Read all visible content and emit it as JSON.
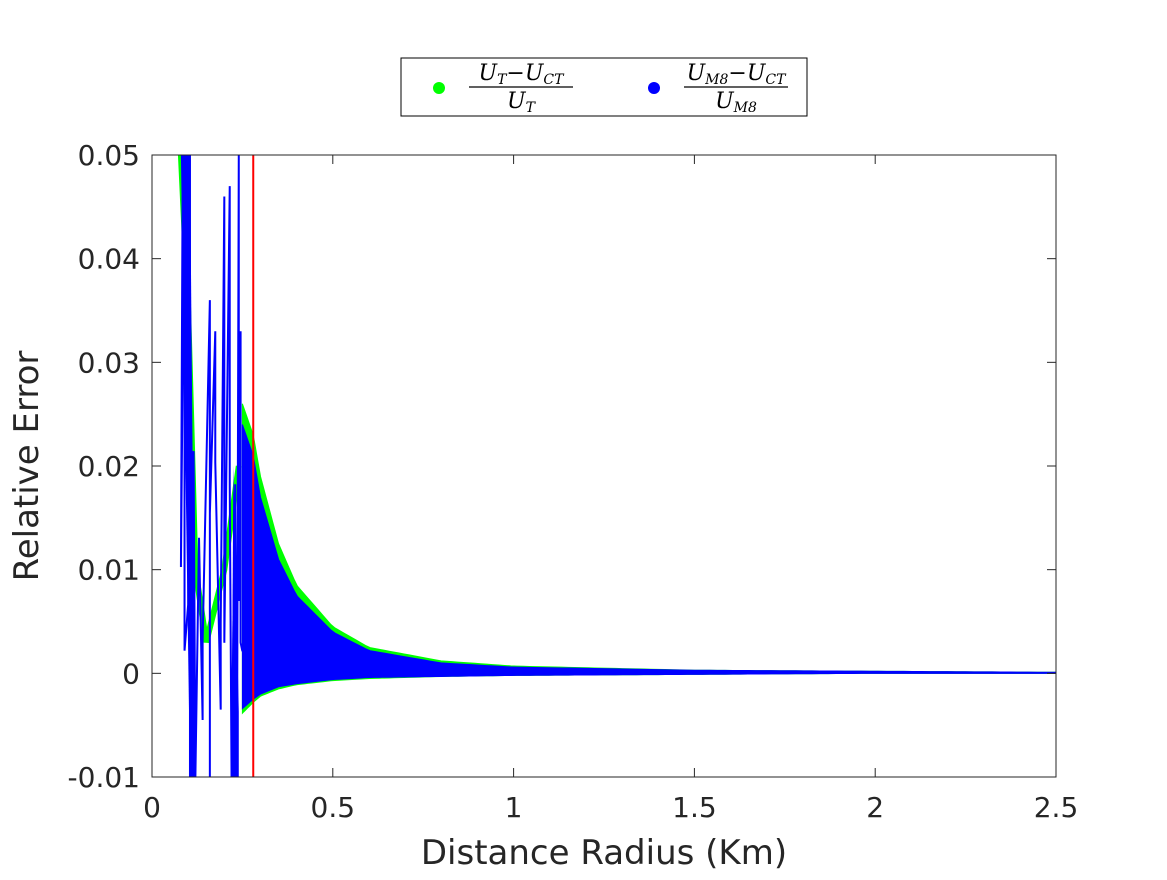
{
  "chart_data": {
    "type": "line",
    "title": "",
    "xlabel": "Distance Radius (Km)",
    "ylabel": "Relative Error",
    "xlim": [
      0,
      2.5
    ],
    "ylim": [
      -0.01,
      0.05
    ],
    "xticks": [
      0,
      0.5,
      1,
      1.5,
      2,
      2.5
    ],
    "xtick_labels": [
      "0",
      "0.5",
      "1",
      "1.5",
      "2",
      "2.5"
    ],
    "yticks": [
      -0.01,
      0,
      0.01,
      0.02,
      0.03,
      0.04,
      0.05
    ],
    "ytick_labels": [
      "-0.01",
      "0",
      "0.01",
      "0.02",
      "0.03",
      "0.04",
      "0.05"
    ],
    "grid": false,
    "legend_placement": "top-center outside",
    "series": [
      {
        "name": "(U_T − U_CT) / U_T",
        "color": "#00ff00",
        "upper_envelope": {
          "x": [
            0.25,
            0.28,
            0.3,
            0.35,
            0.4,
            0.5,
            0.6,
            0.8,
            1.0,
            1.5,
            2.0,
            2.5
          ],
          "y": [
            0.026,
            0.023,
            0.019,
            0.0125,
            0.0085,
            0.0045,
            0.0025,
            0.0012,
            0.0007,
            0.0003,
            0.0002,
            0.0001
          ]
        },
        "lower_envelope": {
          "x": [
            0.24,
            0.28,
            0.3,
            0.35,
            0.4,
            0.5,
            0.6,
            0.8,
            1.0,
            1.5,
            2.0,
            2.5
          ],
          "y": [
            -0.0042,
            -0.0028,
            -0.0022,
            -0.0015,
            -0.0011,
            -0.0007,
            -0.0005,
            -0.0003,
            -0.0002,
            -0.0001,
            0,
            0
          ]
        },
        "near_field": {
          "x": [
            0.08,
            0.1,
            0.12,
            0.15,
            0.2,
            0.24
          ],
          "y": [
            0.05,
            0.035,
            0.01,
            0.003,
            0.01,
            0.02
          ]
        }
      },
      {
        "name": "(U_M8 − U_CT) / U_M8",
        "color": "#0000ff",
        "upper_envelope": {
          "x": [
            0.25,
            0.28,
            0.3,
            0.35,
            0.4,
            0.5,
            0.6,
            0.8,
            1.0,
            1.5,
            2.0,
            2.5
          ],
          "y": [
            0.024,
            0.021,
            0.017,
            0.011,
            0.0075,
            0.004,
            0.0022,
            0.001,
            0.0006,
            0.0003,
            0.0002,
            0.0001
          ]
        },
        "lower_envelope": {
          "x": [
            0.24,
            0.28,
            0.3,
            0.35,
            0.4,
            0.5,
            0.6,
            0.8,
            1.0,
            1.5,
            2.0,
            2.5
          ],
          "y": [
            -0.0037,
            -0.0025,
            -0.002,
            -0.0013,
            -0.001,
            -0.0006,
            -0.0004,
            -0.0003,
            -0.0002,
            -0.0001,
            0,
            0
          ]
        },
        "spikes": {
          "x": [
            0.09,
            0.105,
            0.16,
            0.175,
            0.2,
            0.215,
            0.24,
            0.245
          ],
          "y": [
            0.05,
            0.05,
            0.036,
            0.033,
            0.046,
            0.047,
            0.05,
            0.033
          ]
        },
        "dips": {
          "x": [
            0.105,
            0.12,
            0.14,
            0.16,
            0.19,
            0.22,
            0.235
          ],
          "y": [
            -0.01,
            -0.01,
            -0.0045,
            -0.01,
            -0.0035,
            -0.01,
            -0.01
          ]
        }
      }
    ],
    "reference_line": {
      "type": "vertical",
      "x": 0.28,
      "color": "#ff0000"
    },
    "legend": {
      "entries": [
        {
          "num_a": "U",
          "num_a_sub": "T",
          "num_b": "U",
          "num_b_sub": "CT",
          "den": "U",
          "den_sub": "T",
          "color": "#00ff00"
        },
        {
          "num_a": "U",
          "num_a_sub": "M8",
          "num_b": "U",
          "num_b_sub": "CT",
          "den": "U",
          "den_sub": "M8",
          "color": "#0000ff"
        }
      ]
    }
  }
}
